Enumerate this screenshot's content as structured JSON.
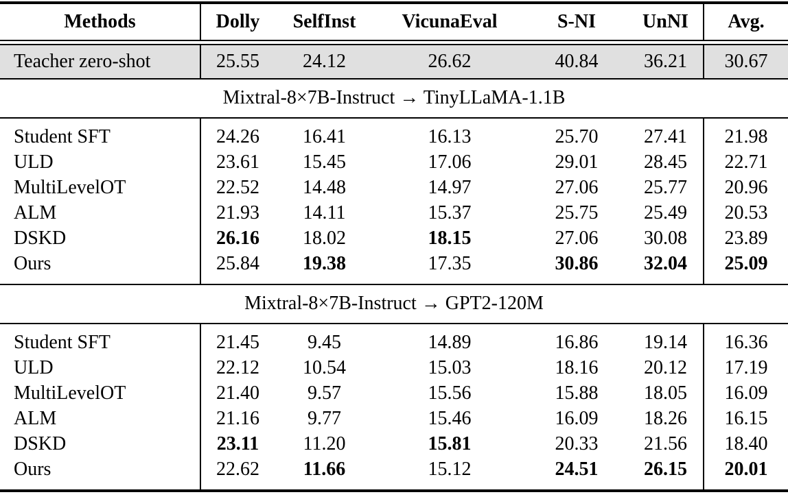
{
  "table": {
    "columns": [
      "Methods",
      "Dolly",
      "SelfInst",
      "VicunaEval",
      "S-NI",
      "UnNI",
      "Avg."
    ],
    "colors": {
      "teacher_row_bg": "#e0e0e0",
      "rule_color": "#000000",
      "text_color": "#000000"
    },
    "teacher_row": {
      "method": "Teacher zero-shot",
      "values": [
        "25.55",
        "24.12",
        "26.62",
        "40.84",
        "36.21",
        "30.67"
      ],
      "bold": [
        false,
        false,
        false,
        false,
        false,
        false
      ]
    },
    "sections": [
      {
        "title": "Mixtral-8×7B-Instruct → TinyLLaMA-1.1B",
        "rows": [
          {
            "method": "Student SFT",
            "values": [
              "24.26",
              "16.41",
              "16.13",
              "25.70",
              "27.41",
              "21.98"
            ],
            "bold": [
              false,
              false,
              false,
              false,
              false,
              false
            ]
          },
          {
            "method": "ULD",
            "values": [
              "23.61",
              "15.45",
              "17.06",
              "29.01",
              "28.45",
              "22.71"
            ],
            "bold": [
              false,
              false,
              false,
              false,
              false,
              false
            ]
          },
          {
            "method": "MultiLevelOT",
            "values": [
              "22.52",
              "14.48",
              "14.97",
              "27.06",
              "25.77",
              "20.96"
            ],
            "bold": [
              false,
              false,
              false,
              false,
              false,
              false
            ]
          },
          {
            "method": "ALM",
            "values": [
              "21.93",
              "14.11",
              "15.37",
              "25.75",
              "25.49",
              "20.53"
            ],
            "bold": [
              false,
              false,
              false,
              false,
              false,
              false
            ]
          },
          {
            "method": "DSKD",
            "values": [
              "26.16",
              "18.02",
              "18.15",
              "27.06",
              "30.08",
              "23.89"
            ],
            "bold": [
              true,
              false,
              true,
              false,
              false,
              false
            ]
          },
          {
            "method": "Ours",
            "values": [
              "25.84",
              "19.38",
              "17.35",
              "30.86",
              "32.04",
              "25.09"
            ],
            "bold": [
              false,
              true,
              false,
              true,
              true,
              true
            ]
          }
        ]
      },
      {
        "title": "Mixtral-8×7B-Instruct → GPT2-120M",
        "rows": [
          {
            "method": "Student SFT",
            "values": [
              "21.45",
              "9.45",
              "14.89",
              "16.86",
              "19.14",
              "16.36"
            ],
            "bold": [
              false,
              false,
              false,
              false,
              false,
              false
            ]
          },
          {
            "method": "ULD",
            "values": [
              "22.12",
              "10.54",
              "15.03",
              "18.16",
              "20.12",
              "17.19"
            ],
            "bold": [
              false,
              false,
              false,
              false,
              false,
              false
            ]
          },
          {
            "method": "MultiLevelOT",
            "values": [
              "21.40",
              "9.57",
              "15.56",
              "15.88",
              "18.05",
              "16.09"
            ],
            "bold": [
              false,
              false,
              false,
              false,
              false,
              false
            ]
          },
          {
            "method": "ALM",
            "values": [
              "21.16",
              "9.77",
              "15.46",
              "16.09",
              "18.26",
              "16.15"
            ],
            "bold": [
              false,
              false,
              false,
              false,
              false,
              false
            ]
          },
          {
            "method": "DSKD",
            "values": [
              "23.11",
              "11.20",
              "15.81",
              "20.33",
              "21.56",
              "18.40"
            ],
            "bold": [
              true,
              false,
              true,
              false,
              false,
              false
            ]
          },
          {
            "method": "Ours",
            "values": [
              "22.62",
              "11.66",
              "15.12",
              "24.51",
              "26.15",
              "20.01"
            ],
            "bold": [
              false,
              true,
              false,
              true,
              true,
              true
            ]
          }
        ]
      }
    ]
  }
}
